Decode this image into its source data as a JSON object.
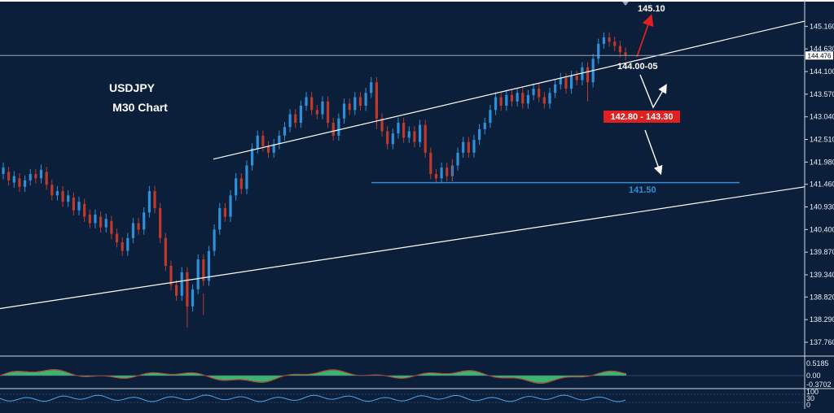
{
  "chart_data": {
    "type": "candlestick",
    "symbol_title": "USDJPY",
    "timeframe_title": "M30 Chart",
    "current_price": "144.476",
    "y_ticks": [
      "145.160",
      "144.630",
      "144.100",
      "143.570",
      "143.040",
      "142.510",
      "141.980",
      "141.460",
      "140.930",
      "140.400",
      "139.870",
      "139.340",
      "138.820",
      "138.290",
      "137.760"
    ],
    "ylim": [
      137.55,
      145.7
    ],
    "candles": [
      [
        0,
        141.7,
        141.85
      ],
      [
        1,
        141.75,
        141.55
      ],
      [
        2,
        141.5,
        141.65
      ],
      [
        3,
        141.6,
        141.4
      ],
      [
        4,
        141.4,
        141.55
      ],
      [
        5,
        141.55,
        141.7
      ],
      [
        6,
        141.7,
        141.6
      ],
      [
        7,
        141.6,
        141.8
      ],
      [
        8,
        141.75,
        141.45
      ],
      [
        9,
        141.45,
        141.2
      ],
      [
        10,
        141.2,
        141.3
      ],
      [
        11,
        141.3,
        141.05
      ],
      [
        12,
        141.05,
        141.2
      ],
      [
        13,
        141.15,
        140.85
      ],
      [
        14,
        140.85,
        141.05
      ],
      [
        15,
        141.0,
        140.7
      ],
      [
        16,
        140.75,
        140.55
      ],
      [
        17,
        140.55,
        140.75
      ],
      [
        18,
        140.7,
        140.45
      ],
      [
        19,
        140.45,
        140.65
      ],
      [
        20,
        140.6,
        140.3
      ],
      [
        21,
        140.3,
        140.1
      ],
      [
        22,
        140.1,
        139.9
      ],
      [
        23,
        139.9,
        140.2
      ],
      [
        24,
        140.2,
        140.55
      ],
      [
        25,
        140.55,
        140.4
      ],
      [
        26,
        140.4,
        140.8
      ],
      [
        27,
        140.8,
        141.3
      ],
      [
        28,
        141.3,
        140.9
      ],
      [
        29,
        140.9,
        140.2
      ],
      [
        30,
        140.2,
        139.55
      ],
      [
        31,
        139.55,
        139.1
      ],
      [
        32,
        139.1,
        138.85
      ],
      [
        33,
        138.85,
        139.4
      ],
      [
        34,
        139.4,
        138.6
      ],
      [
        35,
        138.6,
        139.0
      ],
      [
        36,
        139.0,
        139.7
      ],
      [
        37,
        139.7,
        139.2
      ],
      [
        38,
        139.2,
        139.9
      ],
      [
        39,
        139.9,
        140.4
      ],
      [
        40,
        140.4,
        140.9
      ],
      [
        41,
        140.9,
        140.7
      ],
      [
        42,
        140.7,
        141.2
      ],
      [
        43,
        141.2,
        141.6
      ],
      [
        44,
        141.6,
        141.35
      ],
      [
        45,
        141.35,
        141.9
      ],
      [
        46,
        141.9,
        142.3
      ],
      [
        47,
        142.3,
        142.6
      ],
      [
        48,
        142.6,
        142.35
      ],
      [
        49,
        142.35,
        142.2
      ],
      [
        50,
        142.2,
        142.4
      ],
      [
        51,
        142.4,
        142.6
      ],
      [
        52,
        142.6,
        142.8
      ],
      [
        53,
        142.8,
        143.1
      ],
      [
        54,
        143.1,
        142.9
      ],
      [
        55,
        142.9,
        143.3
      ],
      [
        56,
        143.3,
        143.5
      ],
      [
        57,
        143.5,
        143.2
      ],
      [
        58,
        143.2,
        143.1
      ],
      [
        59,
        143.1,
        143.4
      ],
      [
        60,
        143.4,
        142.9
      ],
      [
        61,
        142.9,
        142.6
      ],
      [
        62,
        142.6,
        143.0
      ],
      [
        63,
        143.0,
        143.35
      ],
      [
        64,
        143.35,
        143.2
      ],
      [
        65,
        143.2,
        143.5
      ],
      [
        66,
        143.5,
        143.3
      ],
      [
        67,
        143.3,
        143.6
      ],
      [
        68,
        143.6,
        143.85
      ],
      [
        69,
        143.85,
        143.0
      ],
      [
        70,
        143.0,
        142.7
      ],
      [
        71,
        142.7,
        142.4
      ],
      [
        72,
        142.4,
        142.65
      ],
      [
        73,
        142.65,
        142.9
      ],
      [
        74,
        142.9,
        142.55
      ],
      [
        75,
        142.55,
        142.7
      ],
      [
        76,
        142.7,
        142.45
      ],
      [
        77,
        142.45,
        142.85
      ],
      [
        78,
        142.85,
        142.2
      ],
      [
        79,
        142.2,
        141.7
      ],
      [
        80,
        141.7,
        141.6
      ],
      [
        81,
        141.6,
        141.85
      ],
      [
        82,
        141.85,
        141.65
      ],
      [
        83,
        141.65,
        141.9
      ],
      [
        84,
        141.9,
        142.2
      ],
      [
        85,
        142.2,
        142.45
      ],
      [
        86,
        142.45,
        142.2
      ],
      [
        87,
        142.2,
        142.5
      ],
      [
        88,
        142.5,
        142.75
      ],
      [
        89,
        142.75,
        142.9
      ],
      [
        90,
        142.9,
        143.2
      ],
      [
        91,
        143.2,
        143.5
      ],
      [
        92,
        143.5,
        143.3
      ],
      [
        93,
        143.3,
        143.55
      ],
      [
        94,
        143.55,
        143.4
      ],
      [
        95,
        143.4,
        143.6
      ],
      [
        96,
        143.6,
        143.35
      ],
      [
        97,
        143.35,
        143.55
      ],
      [
        98,
        143.55,
        143.7
      ],
      [
        99,
        143.7,
        143.5
      ],
      [
        100,
        143.5,
        143.35
      ],
      [
        101,
        143.35,
        143.6
      ],
      [
        102,
        143.6,
        143.8
      ],
      [
        103,
        143.8,
        143.95
      ],
      [
        104,
        143.95,
        143.7
      ],
      [
        105,
        143.7,
        144.0
      ],
      [
        106,
        144.0,
        143.9
      ],
      [
        107,
        143.9,
        144.2
      ],
      [
        108,
        144.2,
        143.85
      ],
      [
        109,
        143.85,
        144.4
      ],
      [
        110,
        144.4,
        144.75
      ],
      [
        111,
        144.75,
        144.9
      ],
      [
        112,
        144.9,
        144.8
      ],
      [
        113,
        144.8,
        144.7
      ],
      [
        114,
        144.7,
        144.55
      ],
      [
        115,
        144.55,
        144.476
      ]
    ],
    "annotations": {
      "target_up": "145.10",
      "support_zone": "144.00-05",
      "target_zone": "142.80 - 143.30",
      "support_level": "141.50"
    },
    "indicator_1": {
      "ticks": [
        "0.5185",
        "0.00",
        "-0.3702"
      ]
    },
    "indicator_2": {
      "ticks": [
        "100",
        "30",
        "0"
      ]
    },
    "colors": {
      "background": "#0b1f3a",
      "bull": "#2f8fd8",
      "bear": "#c0392b",
      "trendline": "#ffffff",
      "support": "#2f8fd8",
      "zone_box": "#e02020",
      "histogram": "#3cb371"
    },
    "grid": false
  }
}
